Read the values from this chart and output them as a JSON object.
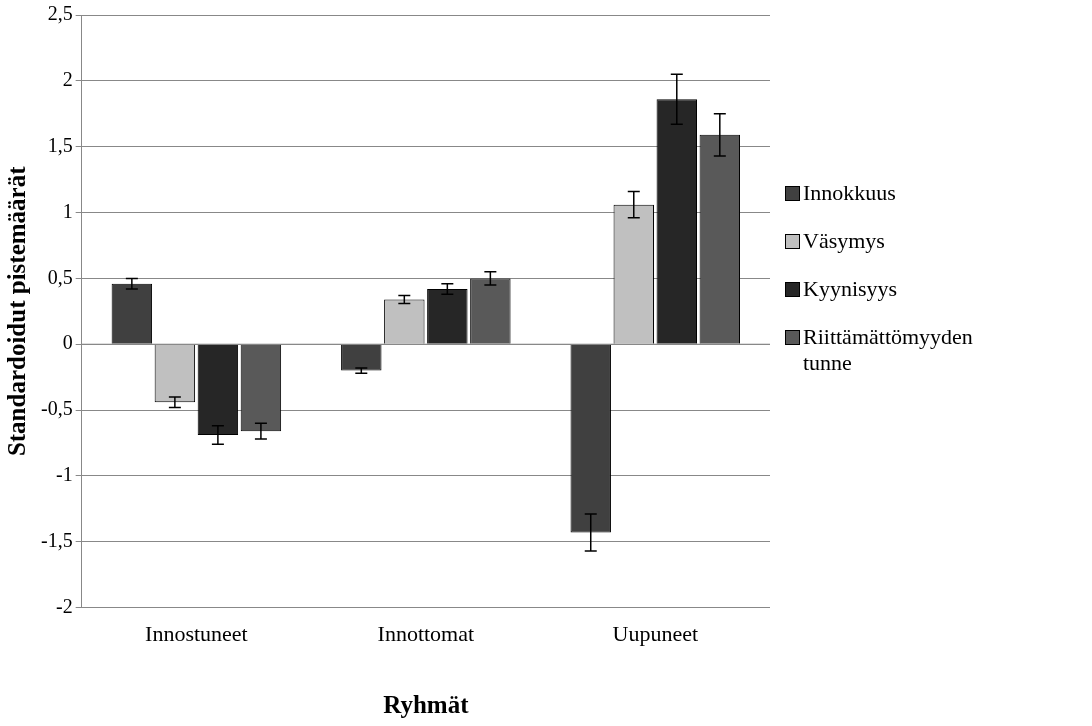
{
  "chart_data": {
    "type": "bar",
    "xlabel": "Ryhmät",
    "ylabel": "Standardoidut pistemäärät",
    "categories": [
      "Innostuneet",
      "Innottomat",
      "Uupuneet"
    ],
    "series": [
      {
        "name": "Innokkuus",
        "color": "#404040",
        "values": [
          0.46,
          -0.2,
          -1.43
        ],
        "errors": [
          0.04,
          0.02,
          0.14
        ]
      },
      {
        "name": "Väsymys",
        "color": "#c0c0c0",
        "values": [
          -0.44,
          0.34,
          1.06
        ],
        "errors": [
          0.04,
          0.03,
          0.1
        ]
      },
      {
        "name": "Kyynisyys",
        "color": "#262626",
        "values": [
          -0.69,
          0.42,
          1.86
        ],
        "errors": [
          0.07,
          0.04,
          0.19
        ]
      },
      {
        "name": "Riittämättömyyden tunne",
        "color": "#595959",
        "values": [
          -0.66,
          0.5,
          1.59
        ],
        "errors": [
          0.06,
          0.05,
          0.16
        ]
      }
    ],
    "ylim": [
      -2,
      2.5
    ],
    "yticks": [
      {
        "value": -2,
        "label": "-2"
      },
      {
        "value": -1.5,
        "label": "-1,5"
      },
      {
        "value": -1,
        "label": "-1"
      },
      {
        "value": -0.5,
        "label": "-0,5"
      },
      {
        "value": 0,
        "label": "0"
      },
      {
        "value": 0.5,
        "label": "0,5"
      },
      {
        "value": 1,
        "label": "1"
      },
      {
        "value": 1.5,
        "label": "1,5"
      },
      {
        "value": 2,
        "label": "2"
      },
      {
        "value": 2.5,
        "label": "2,5"
      }
    ],
    "grid": "y",
    "legend": "right"
  }
}
